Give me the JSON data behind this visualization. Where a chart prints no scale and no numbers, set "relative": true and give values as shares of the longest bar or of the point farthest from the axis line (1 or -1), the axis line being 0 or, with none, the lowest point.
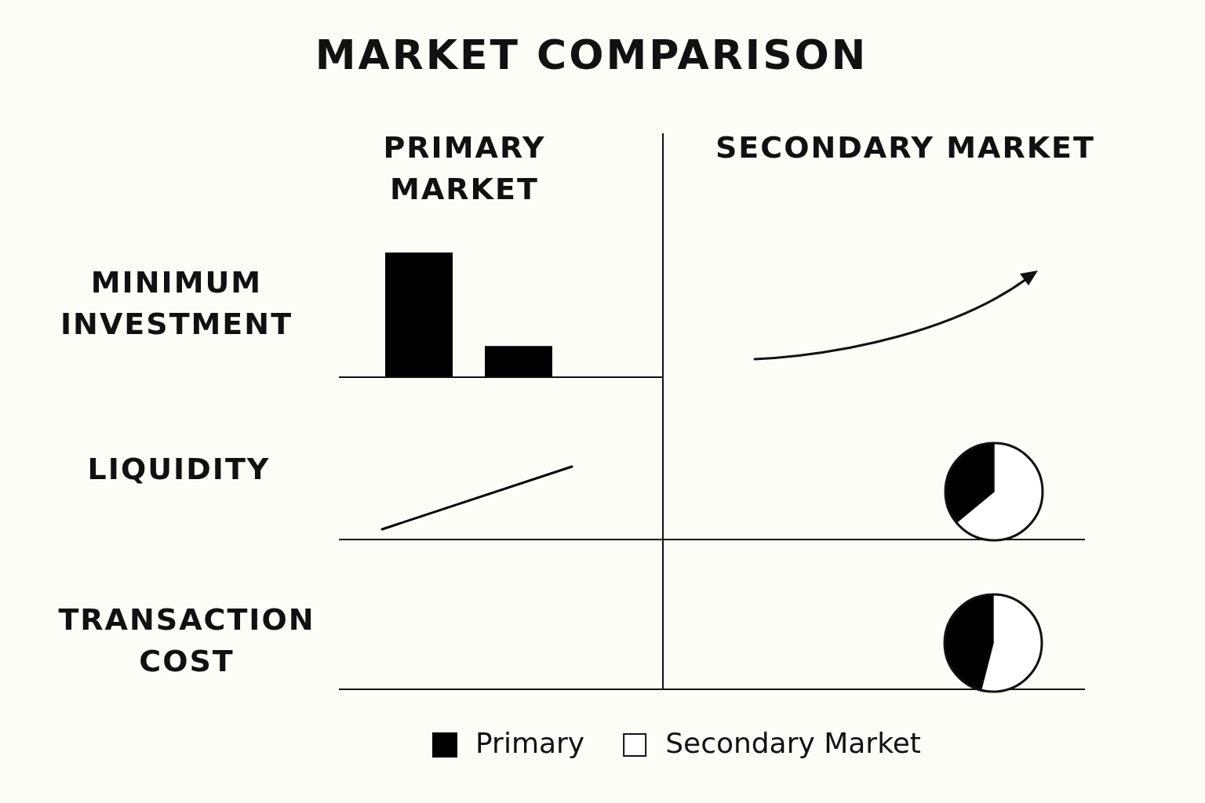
{
  "chart_data": [
    {
      "type": "other",
      "title": "MARKET COMPARISON",
      "annotations": [
        "PRIMARY MARKET",
        "SECONDARY MARKET",
        "MINIMUM INVESTMENT",
        "LIQUIDITY",
        "TRANSACTION COST"
      ]
    },
    {
      "type": "bar",
      "relative": true,
      "categories": [
        null,
        null
      ],
      "values": [
        1,
        0.25
      ],
      "color": "#000000"
    },
    {
      "type": "line",
      "relative": true,
      "categories": [
        null,
        null
      ],
      "values": [
        0.14,
        1
      ],
      "color": "#000000"
    },
    {
      "type": "pie",
      "categories": [
        null,
        null
      ],
      "values": [
        36,
        64
      ],
      "colors": [
        "#000000",
        "#ffffff"
      ]
    },
    {
      "type": "pie",
      "categories": [
        "Primary",
        "Secondary Market"
      ],
      "values": [
        46,
        54
      ],
      "colors": [
        "#000000",
        "#ffffff"
      ],
      "legend": "bottom"
    }
  ]
}
